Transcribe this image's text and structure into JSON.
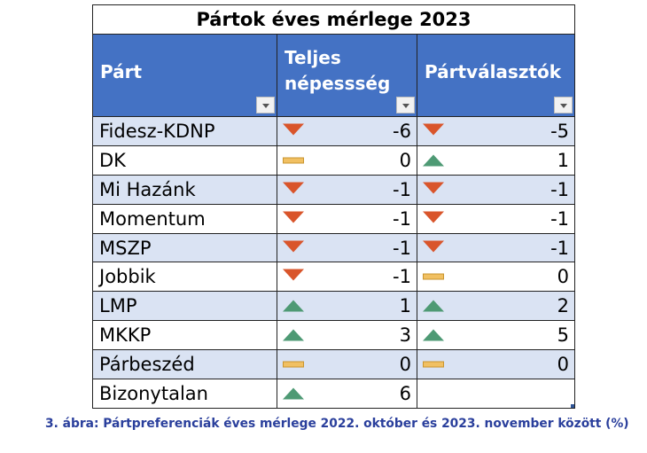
{
  "table": {
    "title": "Pártok éves mérlege 2023",
    "headers": [
      "Párt",
      "Teljes népessség",
      "Pártválasztók"
    ],
    "header_lines": {
      "col1_line1": "Teljes",
      "col1_line2": "népessség"
    },
    "rows": [
      {
        "party": "Fidesz-KDNP",
        "teljes": "-6",
        "teljes_trend": "down",
        "partvalasztok": "-5",
        "partvalasztok_trend": "down"
      },
      {
        "party": "DK",
        "teljes": "0",
        "teljes_trend": "flat",
        "partvalasztok": "1",
        "partvalasztok_trend": "up"
      },
      {
        "party": "Mi Hazánk",
        "teljes": "-1",
        "teljes_trend": "down",
        "partvalasztok": "-1",
        "partvalasztok_trend": "down"
      },
      {
        "party": "Momentum",
        "teljes": "-1",
        "teljes_trend": "down",
        "partvalasztok": "-1",
        "partvalasztok_trend": "down"
      },
      {
        "party": "MSZP",
        "teljes": "-1",
        "teljes_trend": "down",
        "partvalasztok": "-1",
        "partvalasztok_trend": "down"
      },
      {
        "party": "Jobbik",
        "teljes": "-1",
        "teljes_trend": "down",
        "partvalasztok": "0",
        "partvalasztok_trend": "flat"
      },
      {
        "party": "LMP",
        "teljes": "1",
        "teljes_trend": "up",
        "partvalasztok": "2",
        "partvalasztok_trend": "up"
      },
      {
        "party": "MKKP",
        "teljes": "3",
        "teljes_trend": "up",
        "partvalasztok": "5",
        "partvalasztok_trend": "up"
      },
      {
        "party": "Párbeszéd",
        "teljes": "0",
        "teljes_trend": "flat",
        "partvalasztok": "0",
        "partvalasztok_trend": "flat"
      },
      {
        "party": "Bizonytalan",
        "teljes": "6",
        "teljes_trend": "up",
        "partvalasztok": "",
        "partvalasztok_trend": "none"
      }
    ],
    "colors": {
      "header_bg": "#4472c4",
      "band": "#dae3f3",
      "down": "#d9552b",
      "up": "#4e9a74",
      "flat": "#f1c062"
    },
    "icons": {
      "down": "red-down-triangle-icon",
      "up": "green-up-triangle-icon",
      "flat": "yellow-bar-icon",
      "filter": "filter-dropdown-icon"
    }
  },
  "caption": "3. ábra: Pártpreferenciák éves mérlege 2022. október és 2023. november között (%)"
}
